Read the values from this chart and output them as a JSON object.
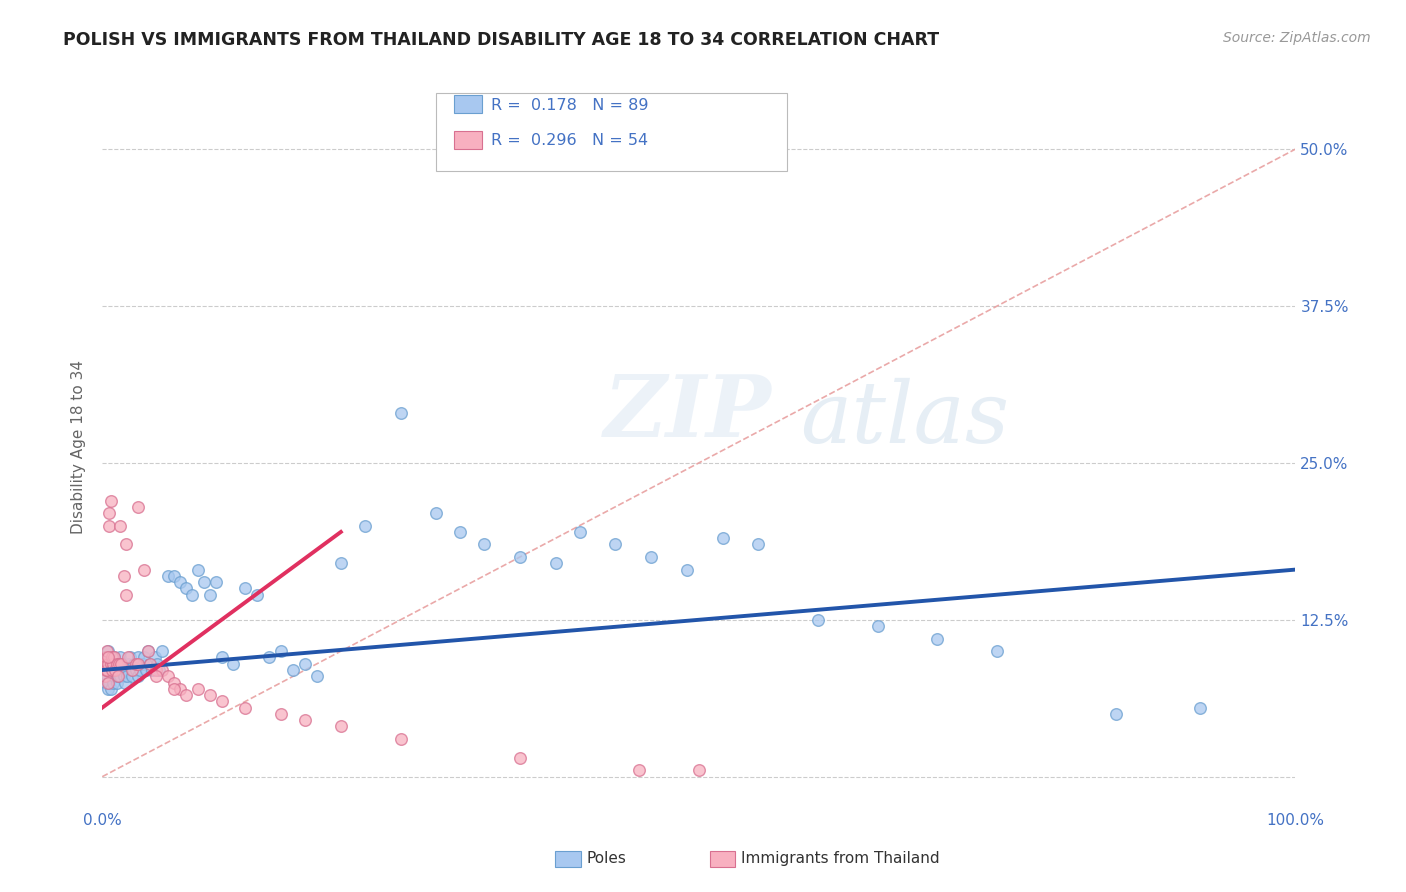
{
  "title": "POLISH VS IMMIGRANTS FROM THAILAND DISABILITY AGE 18 TO 34 CORRELATION CHART",
  "source": "Source: ZipAtlas.com",
  "ylabel": "Disability Age 18 to 34",
  "xlim": [
    0,
    1.0
  ],
  "ylim": [
    -0.025,
    0.55
  ],
  "xticks": [
    0.0,
    0.25,
    0.5,
    0.75,
    1.0
  ],
  "xticklabels": [
    "0.0%",
    "",
    "",
    "",
    "100.0%"
  ],
  "yticks": [
    0.0,
    0.125,
    0.25,
    0.375,
    0.5
  ],
  "yticklabels": [
    "",
    "12.5%",
    "25.0%",
    "37.5%",
    "50.0%"
  ],
  "poles_R": 0.178,
  "poles_N": 89,
  "thailand_R": 0.296,
  "thailand_N": 54,
  "poles_color": "#a8c8f0",
  "poles_edge_color": "#6a9fd0",
  "poles_line_color": "#2255aa",
  "thailand_color": "#f8b0c0",
  "thailand_edge_color": "#d87090",
  "thailand_line_color": "#e03060",
  "diag_line_color": "#e8a0a0",
  "background_color": "#ffffff",
  "poles_trend_x0": 0.0,
  "poles_trend_y0": 0.085,
  "poles_trend_x1": 1.0,
  "poles_trend_y1": 0.165,
  "thailand_trend_x0": 0.0,
  "thailand_trend_y0": 0.055,
  "thailand_trend_x1": 0.2,
  "thailand_trend_y1": 0.195,
  "poles_x": [
    0.001,
    0.002,
    0.002,
    0.003,
    0.003,
    0.004,
    0.004,
    0.005,
    0.005,
    0.006,
    0.006,
    0.007,
    0.007,
    0.008,
    0.008,
    0.009,
    0.009,
    0.01,
    0.01,
    0.011,
    0.011,
    0.012,
    0.013,
    0.014,
    0.015,
    0.015,
    0.016,
    0.017,
    0.018,
    0.019,
    0.02,
    0.021,
    0.022,
    0.023,
    0.025,
    0.026,
    0.027,
    0.028,
    0.03,
    0.03,
    0.032,
    0.034,
    0.035,
    0.037,
    0.038,
    0.04,
    0.042,
    0.044,
    0.046,
    0.048,
    0.05,
    0.055,
    0.06,
    0.065,
    0.07,
    0.075,
    0.08,
    0.085,
    0.09,
    0.095,
    0.1,
    0.11,
    0.12,
    0.13,
    0.14,
    0.15,
    0.16,
    0.17,
    0.18,
    0.2,
    0.22,
    0.25,
    0.28,
    0.3,
    0.32,
    0.35,
    0.38,
    0.4,
    0.43,
    0.46,
    0.49,
    0.52,
    0.55,
    0.6,
    0.65,
    0.7,
    0.75,
    0.85,
    0.92
  ],
  "poles_y": [
    0.09,
    0.095,
    0.08,
    0.085,
    0.075,
    0.095,
    0.08,
    0.1,
    0.07,
    0.09,
    0.075,
    0.085,
    0.07,
    0.095,
    0.08,
    0.09,
    0.075,
    0.095,
    0.08,
    0.085,
    0.09,
    0.075,
    0.08,
    0.085,
    0.095,
    0.08,
    0.085,
    0.09,
    0.08,
    0.075,
    0.085,
    0.08,
    0.09,
    0.095,
    0.08,
    0.085,
    0.09,
    0.085,
    0.095,
    0.08,
    0.085,
    0.09,
    0.095,
    0.085,
    0.1,
    0.09,
    0.085,
    0.095,
    0.09,
    0.085,
    0.1,
    0.16,
    0.16,
    0.155,
    0.15,
    0.145,
    0.165,
    0.155,
    0.145,
    0.155,
    0.095,
    0.09,
    0.15,
    0.145,
    0.095,
    0.1,
    0.085,
    0.09,
    0.08,
    0.17,
    0.2,
    0.29,
    0.21,
    0.195,
    0.185,
    0.175,
    0.17,
    0.195,
    0.185,
    0.175,
    0.165,
    0.19,
    0.185,
    0.125,
    0.12,
    0.11,
    0.1,
    0.05,
    0.055
  ],
  "thailand_x": [
    0.001,
    0.002,
    0.002,
    0.003,
    0.003,
    0.004,
    0.004,
    0.005,
    0.005,
    0.006,
    0.006,
    0.007,
    0.007,
    0.008,
    0.008,
    0.009,
    0.01,
    0.011,
    0.012,
    0.013,
    0.014,
    0.015,
    0.016,
    0.018,
    0.02,
    0.022,
    0.025,
    0.028,
    0.03,
    0.035,
    0.038,
    0.04,
    0.045,
    0.05,
    0.055,
    0.06,
    0.065,
    0.07,
    0.08,
    0.09,
    0.1,
    0.12,
    0.15,
    0.17,
    0.2,
    0.25,
    0.35,
    0.45,
    0.5,
    0.03,
    0.005,
    0.02,
    0.045,
    0.06
  ],
  "thailand_y": [
    0.09,
    0.09,
    0.08,
    0.095,
    0.085,
    0.1,
    0.085,
    0.09,
    0.075,
    0.2,
    0.21,
    0.22,
    0.09,
    0.095,
    0.085,
    0.09,
    0.095,
    0.085,
    0.09,
    0.08,
    0.09,
    0.2,
    0.09,
    0.16,
    0.145,
    0.095,
    0.085,
    0.09,
    0.215,
    0.165,
    0.1,
    0.09,
    0.085,
    0.085,
    0.08,
    0.075,
    0.07,
    0.065,
    0.07,
    0.065,
    0.06,
    0.055,
    0.05,
    0.045,
    0.04,
    0.03,
    0.015,
    0.005,
    0.005,
    0.09,
    0.095,
    0.185,
    0.08,
    0.07
  ]
}
